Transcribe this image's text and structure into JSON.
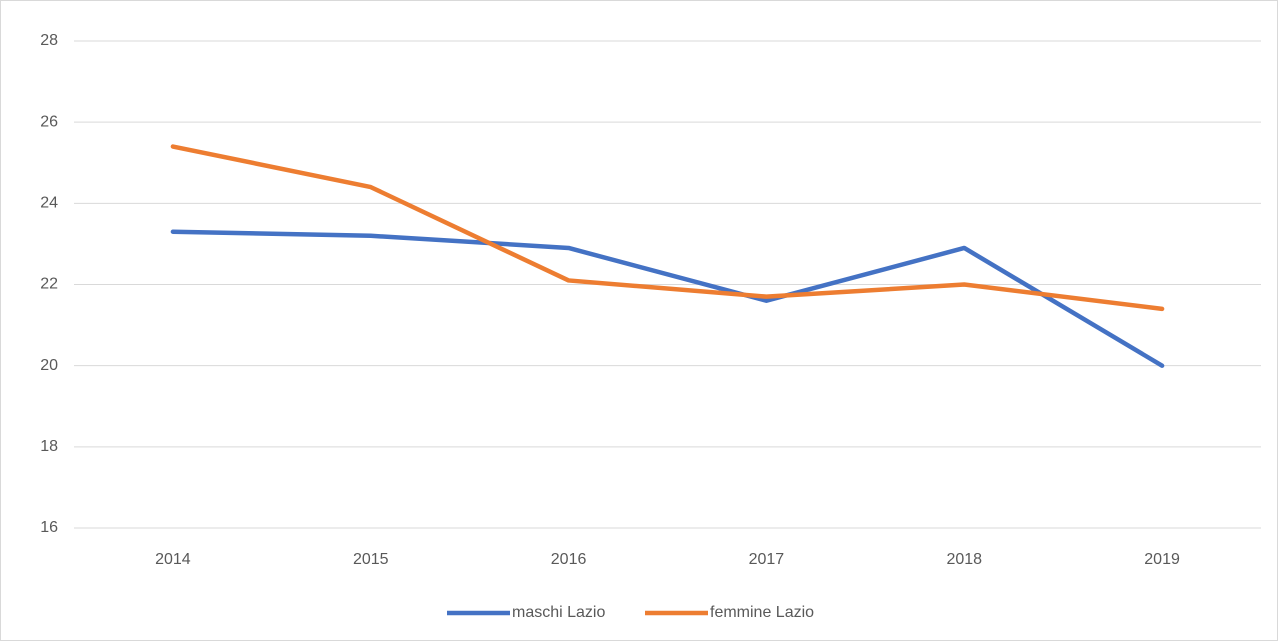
{
  "chart_data": {
    "type": "line",
    "categories": [
      "2014",
      "2015",
      "2016",
      "2017",
      "2018",
      "2019"
    ],
    "series": [
      {
        "name": "maschi Lazio",
        "color": "#4472c4",
        "values": [
          23.3,
          23.2,
          22.9,
          21.6,
          22.9,
          20.0
        ]
      },
      {
        "name": "femmine Lazio",
        "color": "#ed7d31",
        "values": [
          25.4,
          24.4,
          22.1,
          21.7,
          22.0,
          21.4
        ]
      }
    ],
    "ylim": [
      16,
      28
    ],
    "yticks": [
      16,
      18,
      20,
      22,
      24,
      26,
      28
    ],
    "grid": true,
    "legend": "bottom"
  }
}
